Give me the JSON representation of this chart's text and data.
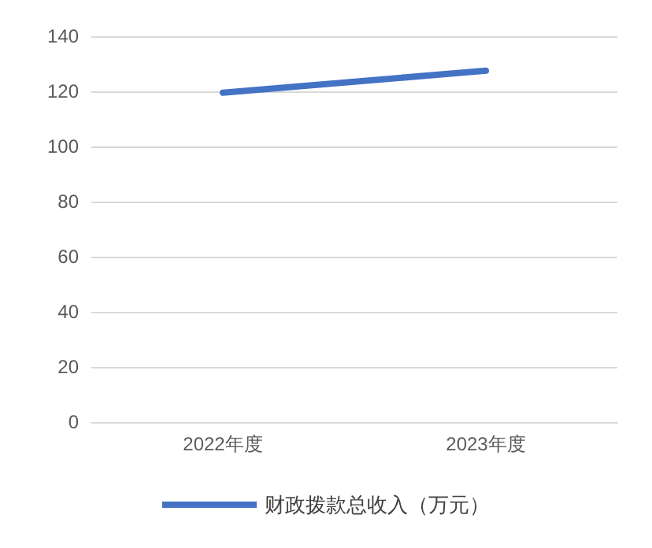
{
  "chart_data": {
    "type": "line",
    "categories": [
      "2022年度",
      "2023年度"
    ],
    "series": [
      {
        "name": "财政拨款总收入（万元）",
        "color": "#4472c4",
        "values": [
          119.5,
          127.5
        ]
      }
    ],
    "ylim": [
      0,
      140
    ],
    "yticks": [
      0,
      20,
      40,
      60,
      80,
      100,
      120,
      140
    ],
    "grid": "y",
    "legend": "bottom",
    "marker": "none",
    "line_style": "solid"
  }
}
